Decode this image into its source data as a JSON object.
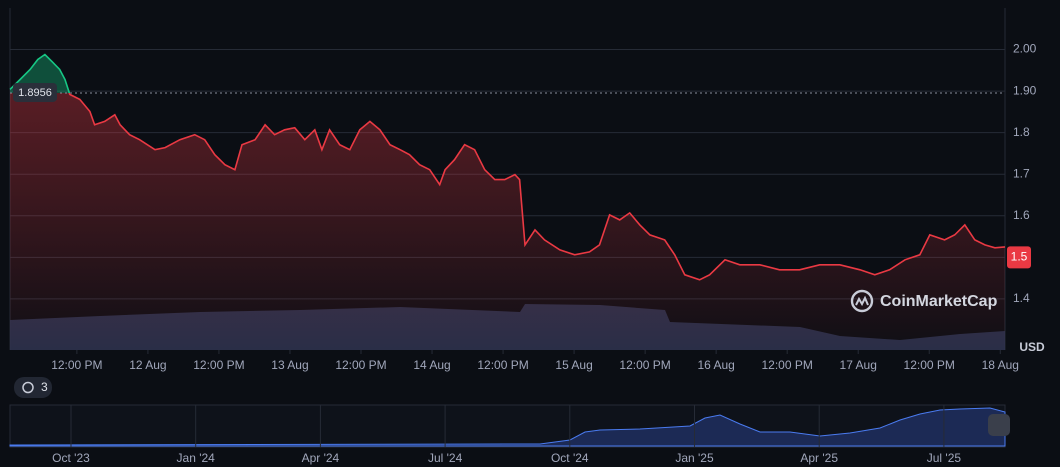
{
  "chart_data": {
    "type": "line",
    "x": [
      0.7,
      2.4,
      4.1,
      5.4,
      6.6,
      7.8,
      9.1,
      10.0,
      10.8,
      12.5,
      14.2,
      15.0,
      16.7,
      18.4,
      19.3,
      20.9,
      22.6,
      25.2,
      26.9,
      29.4,
      31.9,
      33.6,
      35.3,
      37.0,
      38.7,
      39.9,
      42.1,
      43.8,
      45.4,
      47.1,
      48.8,
      50.5,
      52.2,
      53.4,
      54.7,
      56.4,
      58.1,
      59.8,
      61.5,
      63.2,
      64.9,
      66.6,
      68.2,
      69.9,
      71.6,
      73.3,
      74.2,
      75.8,
      77.5,
      79.2,
      80.9,
      82.6,
      84.3,
      86.0,
      86.8,
      87.7,
      89.4,
      91.0,
      93.6,
      96.1,
      98.6,
      100.3,
      102.0,
      103.7,
      105.4,
      107.1,
      108.8,
      111.3,
      113.0,
      114.7,
      117.2,
      118.9,
      121.5,
      124.0,
      127.4,
      130.7,
      134.1,
      137.5,
      140.9,
      144.3,
      146.8,
      149.3,
      151.9,
      154.4,
      156.1,
      158.6,
      160.3,
      162.0,
      163.7,
      165.4,
      167.1,
      168.8
    ],
    "series": [
      {
        "name": "USD",
        "color": "#ea3943",
        "color_above": "#16c784",
        "values": [
          1.904,
          1.928,
          1.952,
          1.976,
          1.988,
          1.971,
          1.952,
          1.928,
          1.892,
          1.88,
          1.851,
          1.819,
          1.827,
          1.843,
          1.819,
          1.795,
          1.783,
          1.759,
          1.764,
          1.783,
          1.795,
          1.783,
          1.747,
          1.723,
          1.711,
          1.771,
          1.783,
          1.819,
          1.795,
          1.807,
          1.812,
          1.783,
          1.807,
          1.759,
          1.807,
          1.771,
          1.759,
          1.807,
          1.827,
          1.807,
          1.771,
          1.759,
          1.747,
          1.723,
          1.711,
          1.675,
          1.711,
          1.735,
          1.771,
          1.759,
          1.711,
          1.687,
          1.687,
          1.699,
          1.687,
          1.53,
          1.566,
          1.542,
          1.518,
          1.506,
          1.513,
          1.53,
          1.602,
          1.59,
          1.607,
          1.578,
          1.554,
          1.542,
          1.506,
          1.458,
          1.446,
          1.458,
          1.494,
          1.482,
          1.482,
          1.47,
          1.47,
          1.482,
          1.482,
          1.47,
          1.458,
          1.47,
          1.494,
          1.506,
          1.554,
          1.542,
          1.554,
          1.578,
          1.542,
          1.53,
          1.523,
          1.525
        ]
      }
    ],
    "reference_price": 1.8956,
    "current_price": 1.5,
    "xlim": [
      0.7,
      168.8
    ],
    "xticks": [
      {
        "value": 12,
        "label": "12:00 PM"
      },
      {
        "value": 24,
        "label": "12 Aug"
      },
      {
        "value": 36,
        "label": "12:00 PM"
      },
      {
        "value": 48,
        "label": "13 Aug"
      },
      {
        "value": 60,
        "label": "12:00 PM"
      },
      {
        "value": 72,
        "label": "14 Aug"
      },
      {
        "value": 84,
        "label": "12:00 PM"
      },
      {
        "value": 96,
        "label": "15 Aug"
      },
      {
        "value": 108,
        "label": "12:00 PM"
      },
      {
        "value": 120,
        "label": "16 Aug"
      },
      {
        "value": 132,
        "label": "12:00 PM"
      },
      {
        "value": 144,
        "label": "17 Aug"
      },
      {
        "value": 156,
        "label": "12:00 PM"
      },
      {
        "value": 168,
        "label": "18 Aug"
      }
    ],
    "ylim": [
      1.277,
      2.1
    ],
    "yticks": [
      {
        "value": 2.0,
        "label": "2.00"
      },
      {
        "value": 1.9,
        "label": "1.90"
      },
      1.8,
      1.7,
      1.6,
      1.5,
      1.4
    ],
    "y_axis_label": "USD",
    "grid": true,
    "watermark": "CoinMarketCap",
    "history_badge": "3",
    "navigator": {
      "labels": [
        "Oct '23",
        "Jan '24",
        "Apr '24",
        "Jul '24",
        "Oct '24",
        "Jan '25",
        "Apr '25",
        "Jul '25"
      ]
    }
  }
}
